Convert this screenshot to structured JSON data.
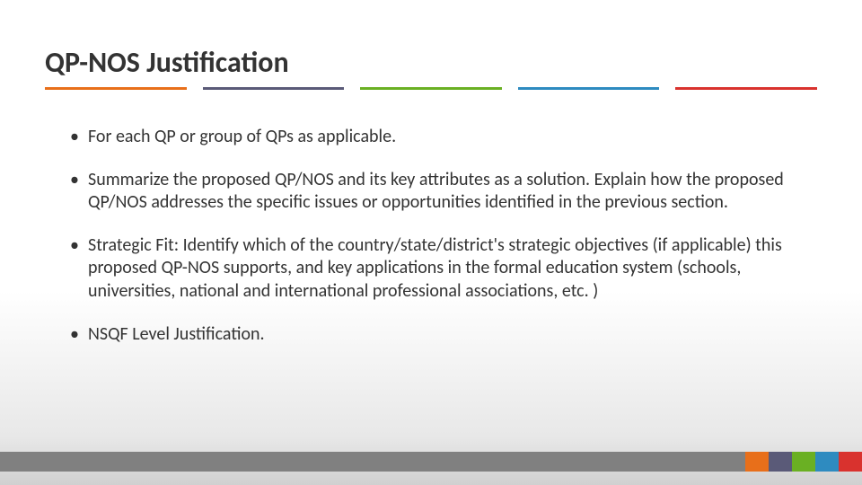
{
  "title": "QP-NOS Justification",
  "underline_colors": [
    "#e86f1a",
    "#5a5a78",
    "#6ab023",
    "#2e8bc0",
    "#d9322e"
  ],
  "bullets": [
    "For each QP or group of QPs as applicable.",
    "Summarize the proposed QP/NOS and its key attributes as a solution. Explain how the proposed QP/NOS addresses the specific issues or opportunities identified in the previous section.",
    "Strategic Fit: Identify which of the country/state/district's strategic objectives (if applicable) this proposed QP-NOS supports, and key applications in the formal education system (schools, universities, national and international professional associations, etc. )",
    "NSQF Level Justification."
  ],
  "footer": {
    "grey_color": "#808080",
    "stripe_colors": [
      "#e86f1a",
      "#5a5a78",
      "#6ab023",
      "#2e8bc0",
      "#d9322e"
    ]
  },
  "body_fontsize": 20,
  "title_fontsize": 32,
  "text_color": "#333333",
  "background_gradient": {
    "top": "#ffffff",
    "bottom": "#d0d0d0"
  }
}
